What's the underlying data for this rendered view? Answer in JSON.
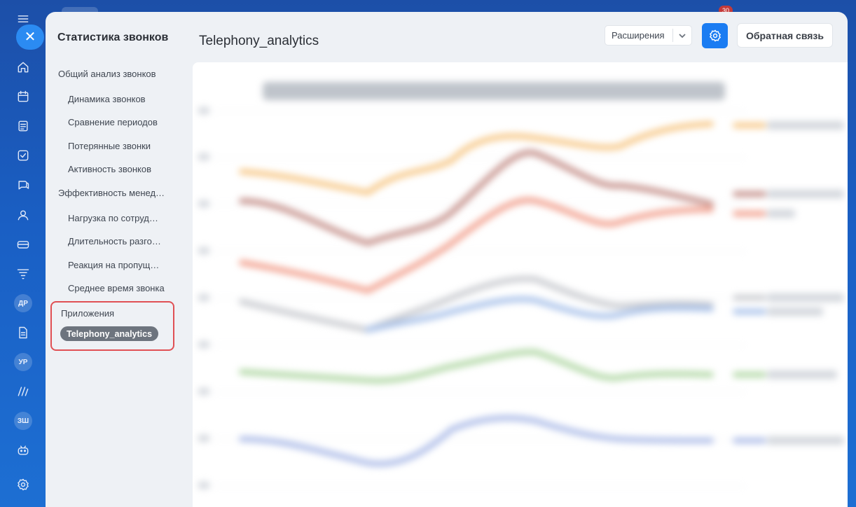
{
  "rail": {
    "icons": [
      "menu-icon",
      "home-icon",
      "calendar-icon",
      "news-icon",
      "tasks-icon",
      "chat-icon",
      "contacts-icon",
      "crm-icon",
      "filter-icon",
      "document-icon",
      "sites-icon",
      "robot-icon",
      "settings-icon"
    ],
    "badges": [
      "ДР",
      "УР",
      "ЗШ"
    ],
    "notification_count": "30"
  },
  "sidebar": {
    "title": "Статистика звонков",
    "groups": [
      {
        "label": "Общий анализ звонков",
        "items": [
          "Динамика звонков",
          "Сравнение периодов",
          "Потерянные звонки",
          "Активность звонков"
        ]
      },
      {
        "label": "Эффективность менеджеров",
        "items": [
          "Нагрузка по сотрудникам",
          "Длительность разговоров",
          "Реакция на пропущенные",
          "Среднее время звонка"
        ]
      }
    ],
    "apps": {
      "label": "Приложения",
      "selected": "Telephony_analytics"
    }
  },
  "header": {
    "title": "Telephony_analytics",
    "extensions_label": "Расширения",
    "feedback_label": "Обратная связь"
  },
  "colors": {
    "accent": "#1a7cf2",
    "highlight_border": "#e05054"
  }
}
